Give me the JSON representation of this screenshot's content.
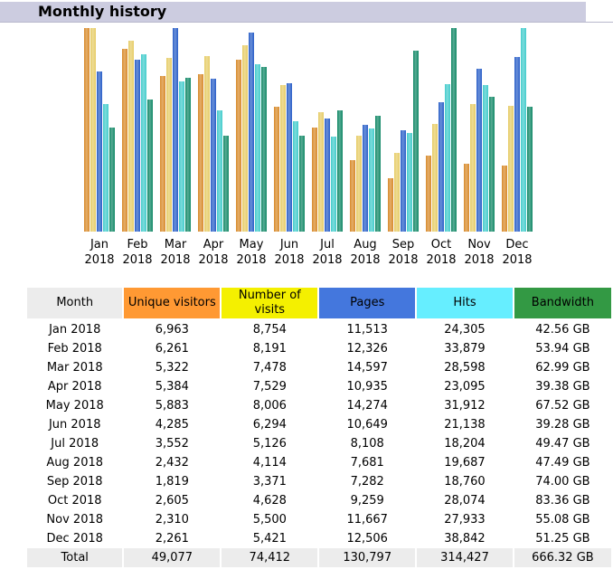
{
  "header": {
    "title": "Monthly history"
  },
  "chart_data": {
    "type": "bar",
    "categories": [
      "Jan 2018",
      "Feb 2018",
      "Mar 2018",
      "Apr 2018",
      "May 2018",
      "Jun 2018",
      "Jul 2018",
      "Aug 2018",
      "Sep 2018",
      "Oct 2018",
      "Nov 2018",
      "Dec 2018"
    ],
    "month_labels": [
      {
        "month": "Jan",
        "year": "2018"
      },
      {
        "month": "Feb",
        "year": "2018"
      },
      {
        "month": "Mar",
        "year": "2018"
      },
      {
        "month": "Apr",
        "year": "2018"
      },
      {
        "month": "May",
        "year": "2018"
      },
      {
        "month": "Jun",
        "year": "2018"
      },
      {
        "month": "Jul",
        "year": "2018"
      },
      {
        "month": "Aug",
        "year": "2018"
      },
      {
        "month": "Sep",
        "year": "2018"
      },
      {
        "month": "Oct",
        "year": "2018"
      },
      {
        "month": "Nov",
        "year": "2018"
      },
      {
        "month": "Dec",
        "year": "2018"
      }
    ],
    "series": [
      {
        "name": "Unique visitors",
        "color": "#d88a2a",
        "values": [
          6963,
          6261,
          5322,
          5384,
          5883,
          4285,
          3552,
          2432,
          1819,
          2605,
          2310,
          2261
        ]
      },
      {
        "name": "Number of visits",
        "color": "#e6cc66",
        "values": [
          8754,
          8191,
          7478,
          7529,
          8006,
          6294,
          5126,
          4114,
          3371,
          4628,
          5500,
          5421
        ]
      },
      {
        "name": "Pages",
        "color": "#2a5fc8",
        "values": [
          11513,
          12326,
          14597,
          10935,
          14274,
          10649,
          8108,
          7681,
          7282,
          9259,
          11667,
          12506
        ]
      },
      {
        "name": "Hits",
        "color": "#44cccc",
        "values": [
          24305,
          33879,
          28598,
          23095,
          31912,
          21138,
          18204,
          19687,
          18760,
          28074,
          27933,
          38842
        ]
      },
      {
        "name": "Bandwidth",
        "color": "#118866",
        "values": [
          42.56,
          53.94,
          62.99,
          39.38,
          67.52,
          39.28,
          49.47,
          47.49,
          74.0,
          83.36,
          55.08,
          51.25
        ]
      }
    ],
    "colors": {
      "unique_visitors": "#ff9933",
      "visits": "#f4f000",
      "pages": "#4477dd",
      "hits": "#66eeff",
      "bandwidth": "#339944"
    }
  },
  "table": {
    "headers": [
      "Month",
      "Unique visitors",
      "Number of visits",
      "Pages",
      "Hits",
      "Bandwidth"
    ],
    "rows": [
      [
        "Jan 2018",
        "6,963",
        "8,754",
        "11,513",
        "24,305",
        "42.56 GB"
      ],
      [
        "Feb 2018",
        "6,261",
        "8,191",
        "12,326",
        "33,879",
        "53.94 GB"
      ],
      [
        "Mar 2018",
        "5,322",
        "7,478",
        "14,597",
        "28,598",
        "62.99 GB"
      ],
      [
        "Apr 2018",
        "5,384",
        "7,529",
        "10,935",
        "23,095",
        "39.38 GB"
      ],
      [
        "May 2018",
        "5,883",
        "8,006",
        "14,274",
        "31,912",
        "67.52 GB"
      ],
      [
        "Jun 2018",
        "4,285",
        "6,294",
        "10,649",
        "21,138",
        "39.28 GB"
      ],
      [
        "Jul 2018",
        "3,552",
        "5,126",
        "8,108",
        "18,204",
        "49.47 GB"
      ],
      [
        "Aug 2018",
        "2,432",
        "4,114",
        "7,681",
        "19,687",
        "47.49 GB"
      ],
      [
        "Sep 2018",
        "1,819",
        "3,371",
        "7,282",
        "18,760",
        "74.00 GB"
      ],
      [
        "Oct 2018",
        "2,605",
        "4,628",
        "9,259",
        "28,074",
        "83.36 GB"
      ],
      [
        "Nov 2018",
        "2,310",
        "5,500",
        "11,667",
        "27,933",
        "55.08 GB"
      ],
      [
        "Dec 2018",
        "2,261",
        "5,421",
        "12,506",
        "38,842",
        "51.25 GB"
      ]
    ],
    "total": [
      "Total",
      "49,077",
      "74,412",
      "130,797",
      "314,427",
      "666.32 GB"
    ]
  }
}
